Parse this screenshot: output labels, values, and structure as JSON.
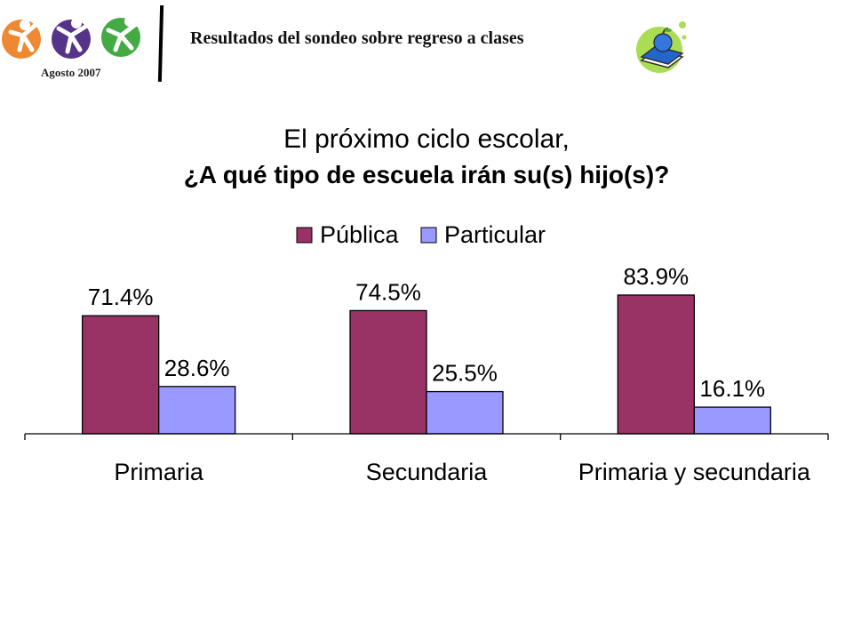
{
  "header": {
    "title": "Resultados del sondeo sobre regreso a clases",
    "date": "Agosto 2007"
  },
  "icons": {
    "logo": "children-logo-icon",
    "book": "book-apple-icon"
  },
  "chart_data": {
    "type": "bar",
    "title": [
      "El próximo ciclo escolar,",
      "¿A qué tipo de escuela irán su(s) hijo(s)?"
    ],
    "categories": [
      "Primaria",
      "Secundaria",
      "Primaria y secundaria"
    ],
    "series": [
      {
        "name": "Pública",
        "values": [
          71.4,
          74.5,
          83.9
        ],
        "labels": [
          "71.4%",
          "74.5%",
          "83.9%"
        ],
        "color": "#993366"
      },
      {
        "name": "Particular",
        "values": [
          28.6,
          25.5,
          16.1
        ],
        "labels": [
          "28.6%",
          "25.5%",
          "16.1%"
        ],
        "color": "#9999FF"
      }
    ],
    "ylim": [
      0,
      100
    ],
    "legend_position": "top",
    "grid": false
  }
}
